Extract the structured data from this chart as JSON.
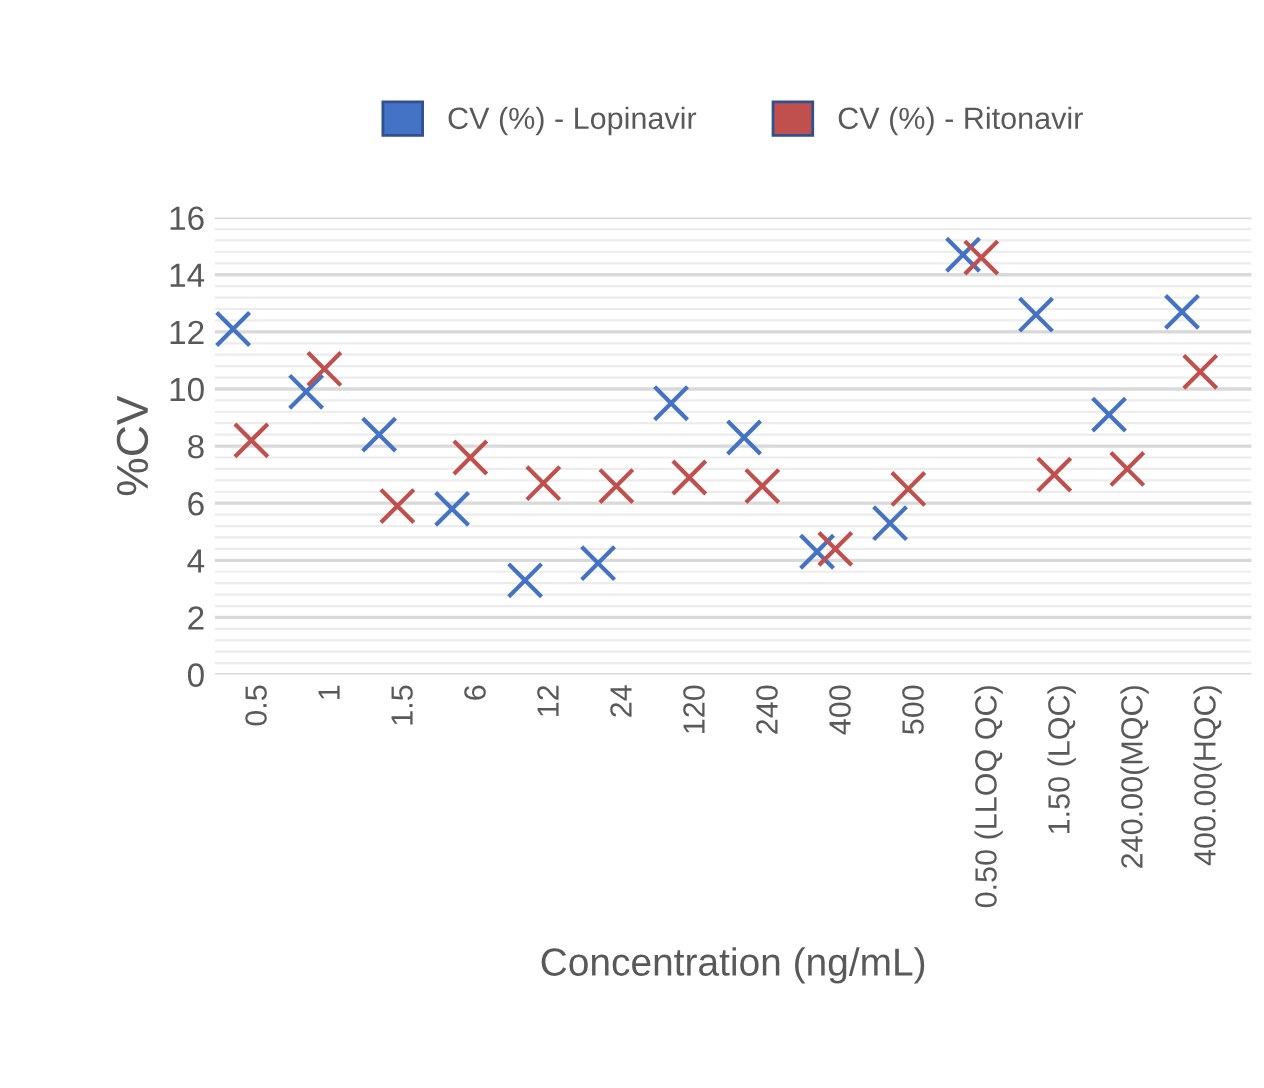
{
  "chart_data": {
    "type": "scatter",
    "xlabel": "Concentration (ng/mL)",
    "ylabel": "%CV",
    "categories": [
      "0.5",
      "1",
      "1.5",
      "6",
      "12",
      "24",
      "120",
      "240",
      "400",
      "500",
      "0.50 (LLOQ QC)",
      "1.50 (LQC)",
      "240.00(MQC)",
      "400.00(HQC)"
    ],
    "series": [
      {
        "name": "CV (%) - Lopinavir",
        "color": "#4472c4",
        "values": [
          12.1,
          9.9,
          8.4,
          5.8,
          3.3,
          3.9,
          9.5,
          8.3,
          4.3,
          5.3,
          14.7,
          12.6,
          9.1,
          12.7
        ]
      },
      {
        "name": "CV (%) - Ritonavir",
        "color": "#c0504d",
        "values": [
          8.2,
          10.7,
          5.9,
          7.6,
          6.7,
          6.6,
          6.9,
          6.6,
          4.4,
          6.5,
          14.6,
          7.0,
          7.2,
          10.6
        ]
      }
    ],
    "ylim": [
      0,
      16
    ],
    "yticks": [
      0,
      2,
      4,
      6,
      8,
      10,
      12,
      14,
      16
    ],
    "grid": "y",
    "legend": "top",
    "marker": "cross"
  }
}
